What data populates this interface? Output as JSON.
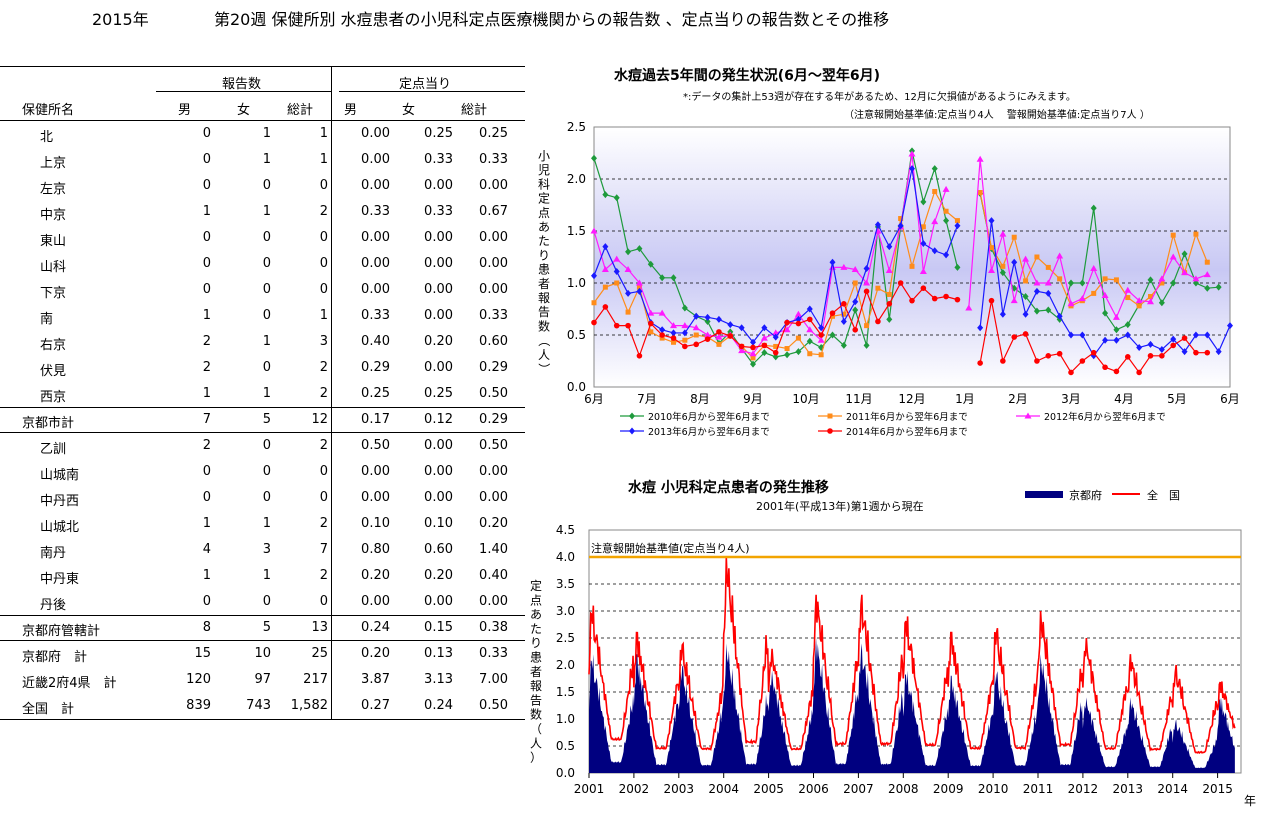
{
  "header": {
    "year": "2015年",
    "title": "第20週 保健所別 水痘患者の小児科定点医療機関からの報告数 、定点当りの報告数とその推移"
  },
  "table": {
    "group_headers": [
      "報告数",
      "定点当り"
    ],
    "col_headers": [
      "保健所名",
      "男",
      "女",
      "総計",
      "男",
      "女",
      "総計"
    ],
    "rows": [
      {
        "name": "北",
        "kind": "item",
        "cells": [
          "0",
          "1",
          "1",
          "0.00",
          "0.25",
          "0.25"
        ]
      },
      {
        "name": "上京",
        "kind": "item",
        "cells": [
          "0",
          "1",
          "1",
          "0.00",
          "0.33",
          "0.33"
        ]
      },
      {
        "name": "左京",
        "kind": "item",
        "cells": [
          "0",
          "0",
          "0",
          "0.00",
          "0.00",
          "0.00"
        ]
      },
      {
        "name": "中京",
        "kind": "item",
        "cells": [
          "1",
          "1",
          "2",
          "0.33",
          "0.33",
          "0.67"
        ]
      },
      {
        "name": "東山",
        "kind": "item",
        "cells": [
          "0",
          "0",
          "0",
          "0.00",
          "0.00",
          "0.00"
        ]
      },
      {
        "name": "山科",
        "kind": "item",
        "cells": [
          "0",
          "0",
          "0",
          "0.00",
          "0.00",
          "0.00"
        ]
      },
      {
        "name": "下京",
        "kind": "item",
        "cells": [
          "0",
          "0",
          "0",
          "0.00",
          "0.00",
          "0.00"
        ]
      },
      {
        "name": "南",
        "kind": "item",
        "cells": [
          "1",
          "0",
          "1",
          "0.33",
          "0.00",
          "0.33"
        ]
      },
      {
        "name": "右京",
        "kind": "item",
        "cells": [
          "2",
          "1",
          "3",
          "0.40",
          "0.20",
          "0.60"
        ]
      },
      {
        "name": "伏見",
        "kind": "item",
        "cells": [
          "2",
          "0",
          "2",
          "0.29",
          "0.00",
          "0.29"
        ]
      },
      {
        "name": "西京",
        "kind": "item",
        "cells": [
          "1",
          "1",
          "2",
          "0.25",
          "0.25",
          "0.50"
        ]
      },
      {
        "name": "京都市計",
        "kind": "sub",
        "cells": [
          "7",
          "5",
          "12",
          "0.17",
          "0.12",
          "0.29"
        ]
      },
      {
        "name": "乙訓",
        "kind": "item",
        "cells": [
          "2",
          "0",
          "2",
          "0.50",
          "0.00",
          "0.50"
        ]
      },
      {
        "name": "山城南",
        "kind": "item",
        "cells": [
          "0",
          "0",
          "0",
          "0.00",
          "0.00",
          "0.00"
        ]
      },
      {
        "name": "中丹西",
        "kind": "item",
        "cells": [
          "0",
          "0",
          "0",
          "0.00",
          "0.00",
          "0.00"
        ]
      },
      {
        "name": "山城北",
        "kind": "item",
        "cells": [
          "1",
          "1",
          "2",
          "0.10",
          "0.10",
          "0.20"
        ]
      },
      {
        "name": "南丹",
        "kind": "item",
        "cells": [
          "4",
          "3",
          "7",
          "0.80",
          "0.60",
          "1.40"
        ]
      },
      {
        "name": "中丹東",
        "kind": "item",
        "cells": [
          "1",
          "1",
          "2",
          "0.20",
          "0.20",
          "0.40"
        ]
      },
      {
        "name": "丹後",
        "kind": "item",
        "cells": [
          "0",
          "0",
          "0",
          "0.00",
          "0.00",
          "0.00"
        ]
      },
      {
        "name": "京都府管轄計",
        "kind": "sub",
        "cells": [
          "8",
          "5",
          "13",
          "0.24",
          "0.15",
          "0.38"
        ]
      },
      {
        "name": "京都府　計",
        "kind": "tot",
        "cells": [
          "15",
          "10",
          "25",
          "0.20",
          "0.13",
          "0.33"
        ]
      },
      {
        "name": "近畿2府4県　計",
        "kind": "tot",
        "cells": [
          "120",
          "97",
          "217",
          "3.87",
          "3.13",
          "7.00"
        ]
      },
      {
        "name": "全国　計",
        "kind": "tot",
        "cells": [
          "839",
          "743",
          "1,582",
          "0.27",
          "0.24",
          "0.50"
        ]
      }
    ]
  },
  "chart_data": [
    {
      "type": "line",
      "title": "水痘過去5年間の発生状況(6月～翌年6月)",
      "note1": "*:データの集計上53週が存在する年があるため、12月に欠損値があるようにみえます。",
      "note2": "（注意報開始基準値:定点当り4人　 警報開始基準値:定点当り7人 ）",
      "ylabel": "小児科定点あたり患者報告数（人）",
      "ylim": [
        0,
        2.5
      ],
      "yticks": [
        "0.0",
        "0.5",
        "1.0",
        "1.5",
        "2.0",
        "2.5"
      ],
      "x_labels": [
        "6月",
        "7月",
        "8月",
        "9月",
        "10月",
        "11月",
        "12月",
        "1月",
        "2月",
        "3月",
        "4月",
        "5月",
        "6月"
      ],
      "series": [
        {
          "name": "2010年6月から翌年6月まで",
          "color": "#1e9a3c",
          "marker": "diamond",
          "values": [
            2.2,
            1.85,
            1.82,
            1.3,
            1.33,
            1.18,
            1.05,
            1.05,
            0.76,
            0.68,
            0.63,
            0.42,
            0.53,
            0.37,
            0.22,
            0.33,
            0.29,
            0.31,
            0.34,
            0.44,
            0.38,
            0.5,
            0.4,
            0.74,
            0.4,
            1.54,
            0.65,
            1.54,
            2.27,
            1.78,
            2.1,
            1.6,
            1.15,
            null,
            1.86,
            1.33,
            1.1,
            0.95,
            0.87,
            0.73,
            0.74,
            0.65,
            1.0,
            1.0,
            1.72,
            0.71,
            0.55,
            0.6,
            0.79,
            1.03,
            0.81,
            1.0,
            1.28,
            1.0,
            0.95,
            0.96
          ]
        },
        {
          "name": "2011年6月から翌年6月まで",
          "color": "#ff8c1a",
          "marker": "square",
          "values": [
            0.81,
            0.96,
            1.0,
            0.72,
            0.96,
            0.53,
            0.47,
            0.43,
            0.45,
            0.5,
            0.48,
            0.41,
            0.49,
            0.39,
            0.28,
            0.4,
            0.39,
            0.37,
            0.47,
            0.32,
            0.31,
            0.68,
            0.7,
            1.0,
            0.59,
            0.95,
            0.89,
            1.62,
            1.16,
            1.54,
            1.88,
            1.69,
            1.6,
            null,
            1.87,
            1.34,
            1.16,
            1.44,
            1.02,
            1.25,
            1.15,
            1.04,
            0.78,
            0.83,
            0.9,
            1.04,
            1.03,
            0.86,
            0.78,
            0.87,
            1.0,
            1.46,
            1.1,
            1.47,
            1.2,
            null
          ]
        },
        {
          "name": "2012年6月から翌年6月まで",
          "color": "#ff1aff",
          "marker": "triangle",
          "values": [
            1.5,
            1.13,
            1.23,
            1.13,
            1.0,
            0.71,
            0.71,
            0.59,
            0.59,
            0.57,
            0.5,
            0.48,
            0.5,
            0.35,
            0.32,
            0.47,
            0.52,
            0.55,
            0.7,
            0.55,
            0.45,
            1.15,
            1.15,
            1.13,
            1.0,
            1.5,
            1.12,
            1.54,
            2.24,
            1.11,
            1.59,
            1.9,
            null,
            0.76,
            2.19,
            1.12,
            1.47,
            0.83,
            1.23,
            1.0,
            1.0,
            1.26,
            0.8,
            0.85,
            1.14,
            0.88,
            0.67,
            0.93,
            0.83,
            0.82,
            1.04,
            1.25,
            1.1,
            1.04,
            1.08,
            null
          ]
        },
        {
          "name": "2013年6月から翌年6月まで",
          "color": "#1a1aff",
          "marker": "diamond",
          "values": [
            1.07,
            1.35,
            1.11,
            0.9,
            0.92,
            0.62,
            0.55,
            0.52,
            0.52,
            0.68,
            0.67,
            0.65,
            0.6,
            0.57,
            0.43,
            0.57,
            0.48,
            0.62,
            0.65,
            0.75,
            0.57,
            1.2,
            0.63,
            0.82,
            1.14,
            1.56,
            1.35,
            1.55,
            2.1,
            1.38,
            1.31,
            1.27,
            1.55,
            null,
            0.57,
            1.6,
            0.7,
            1.2,
            0.7,
            0.92,
            0.9,
            0.68,
            0.5,
            0.5,
            0.3,
            0.45,
            0.45,
            0.5,
            0.38,
            0.41,
            0.36,
            0.46,
            0.34,
            0.5,
            0.5,
            0.34,
            0.59
          ]
        },
        {
          "name": "2014年6月から翌年6月まで",
          "color": "#ff0000",
          "marker": "circle",
          "values": [
            0.62,
            0.77,
            0.59,
            0.59,
            0.3,
            0.61,
            0.5,
            0.47,
            0.39,
            0.41,
            0.46,
            0.53,
            0.49,
            0.39,
            0.38,
            0.4,
            0.33,
            0.62,
            0.61,
            0.65,
            0.5,
            0.71,
            0.8,
            0.55,
            0.92,
            0.63,
            0.8,
            1.0,
            0.83,
            0.95,
            0.85,
            0.87,
            0.84,
            null,
            0.23,
            0.83,
            0.25,
            0.48,
            0.51,
            0.25,
            0.3,
            0.32,
            0.14,
            0.25,
            0.33,
            0.19,
            0.15,
            0.29,
            0.14,
            0.3,
            0.3,
            0.4,
            0.47,
            0.33,
            0.33,
            null
          ]
        }
      ]
    },
    {
      "type": "area",
      "title": "水痘 小児科定点患者の発生推移",
      "subtitle": "2001年(平成13年)第1週から現在",
      "ylabel": "定点あたり患者報告数（人）",
      "xlabel": "年",
      "ylim": [
        0,
        4.5
      ],
      "yticks": [
        "0.0",
        "0.5",
        "1.0",
        "1.5",
        "2.0",
        "2.5",
        "3.0",
        "3.5",
        "4.0",
        "4.5"
      ],
      "x_labels": [
        "2001",
        "2002",
        "2003",
        "2004",
        "2005",
        "2006",
        "2007",
        "2008",
        "2009",
        "2010",
        "2011",
        "2012",
        "2013",
        "2014",
        "2015"
      ],
      "threshold": {
        "value": 4.0,
        "label": "注意報開始基準値(定点当り4人)",
        "color": "#f2a400"
      },
      "series": [
        {
          "name": "京都府",
          "color": "#000080",
          "yearly_peaks": [
            2.2,
            2.2,
            2.0,
            2.4,
            1.9,
            2.5,
            2.4,
            1.9,
            1.8,
            1.9,
            2.2,
            1.4,
            1.4,
            1.0,
            1.4
          ],
          "yearly_troughs": [
            0.1,
            0.05,
            0.05,
            0.05,
            0.05,
            0.05,
            0.05,
            0.05,
            0.05,
            0.05,
            0.05,
            0.05,
            0.05,
            0.05,
            0.05
          ]
        },
        {
          "name": "全　国",
          "color": "#ff0000",
          "yearly_peaks": [
            3.1,
            2.6,
            2.4,
            4.0,
            2.3,
            3.3,
            3.3,
            2.9,
            2.6,
            2.7,
            3.0,
            2.5,
            2.2,
            2.0,
            1.7
          ],
          "yearly_troughs": [
            0.5,
            0.35,
            0.35,
            0.4,
            0.35,
            0.4,
            0.4,
            0.4,
            0.35,
            0.35,
            0.4,
            0.35,
            0.35,
            0.3,
            0.45
          ]
        }
      ]
    }
  ]
}
